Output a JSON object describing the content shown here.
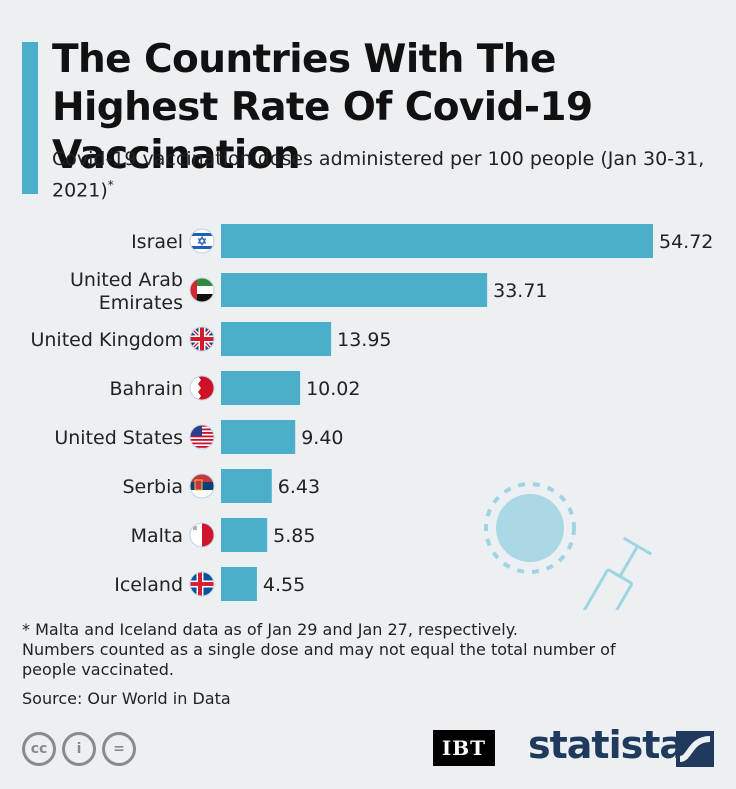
{
  "header": {
    "title": "The Countries With The Highest Rate Of Covid-19 Vaccination",
    "subtitle": "Covid-19 vaccination doses administered per 100 people (Jan 30-31, 2021)",
    "subtitle_mark": "*"
  },
  "chart_data": {
    "type": "bar",
    "orientation": "horizontal",
    "categories": [
      "Israel",
      "United Arab Emirates",
      "United Kingdom",
      "Bahrain",
      "United States",
      "Serbia",
      "Malta",
      "Iceland"
    ],
    "values": [
      54.72,
      33.71,
      13.95,
      10.02,
      9.4,
      6.43,
      5.85,
      4.55
    ],
    "value_labels": [
      "54.72",
      "33.71",
      "13.95",
      "10.02",
      "9.40",
      "6.43",
      "5.85",
      "4.55"
    ],
    "xlim": [
      0,
      54.72
    ],
    "grid": false,
    "title": "The Countries With The Highest Rate Of Covid-19 Vaccination",
    "xlabel": "",
    "ylabel": ""
  },
  "notes": {
    "line1": "* Malta and Iceland data as of Jan 29 and Jan 27, respectively.",
    "line2": "Numbers counted as a single dose and may not equal the total number of people vaccinated.",
    "source": "Source: Our World in Data"
  },
  "footer": {
    "cc_icons": [
      "cc",
      "i",
      "="
    ],
    "ibt": "IBT",
    "statista": "statista"
  },
  "colors": {
    "bar": "#4bafc9",
    "background": "#ecf0f3",
    "accent": "#4bafc9"
  }
}
